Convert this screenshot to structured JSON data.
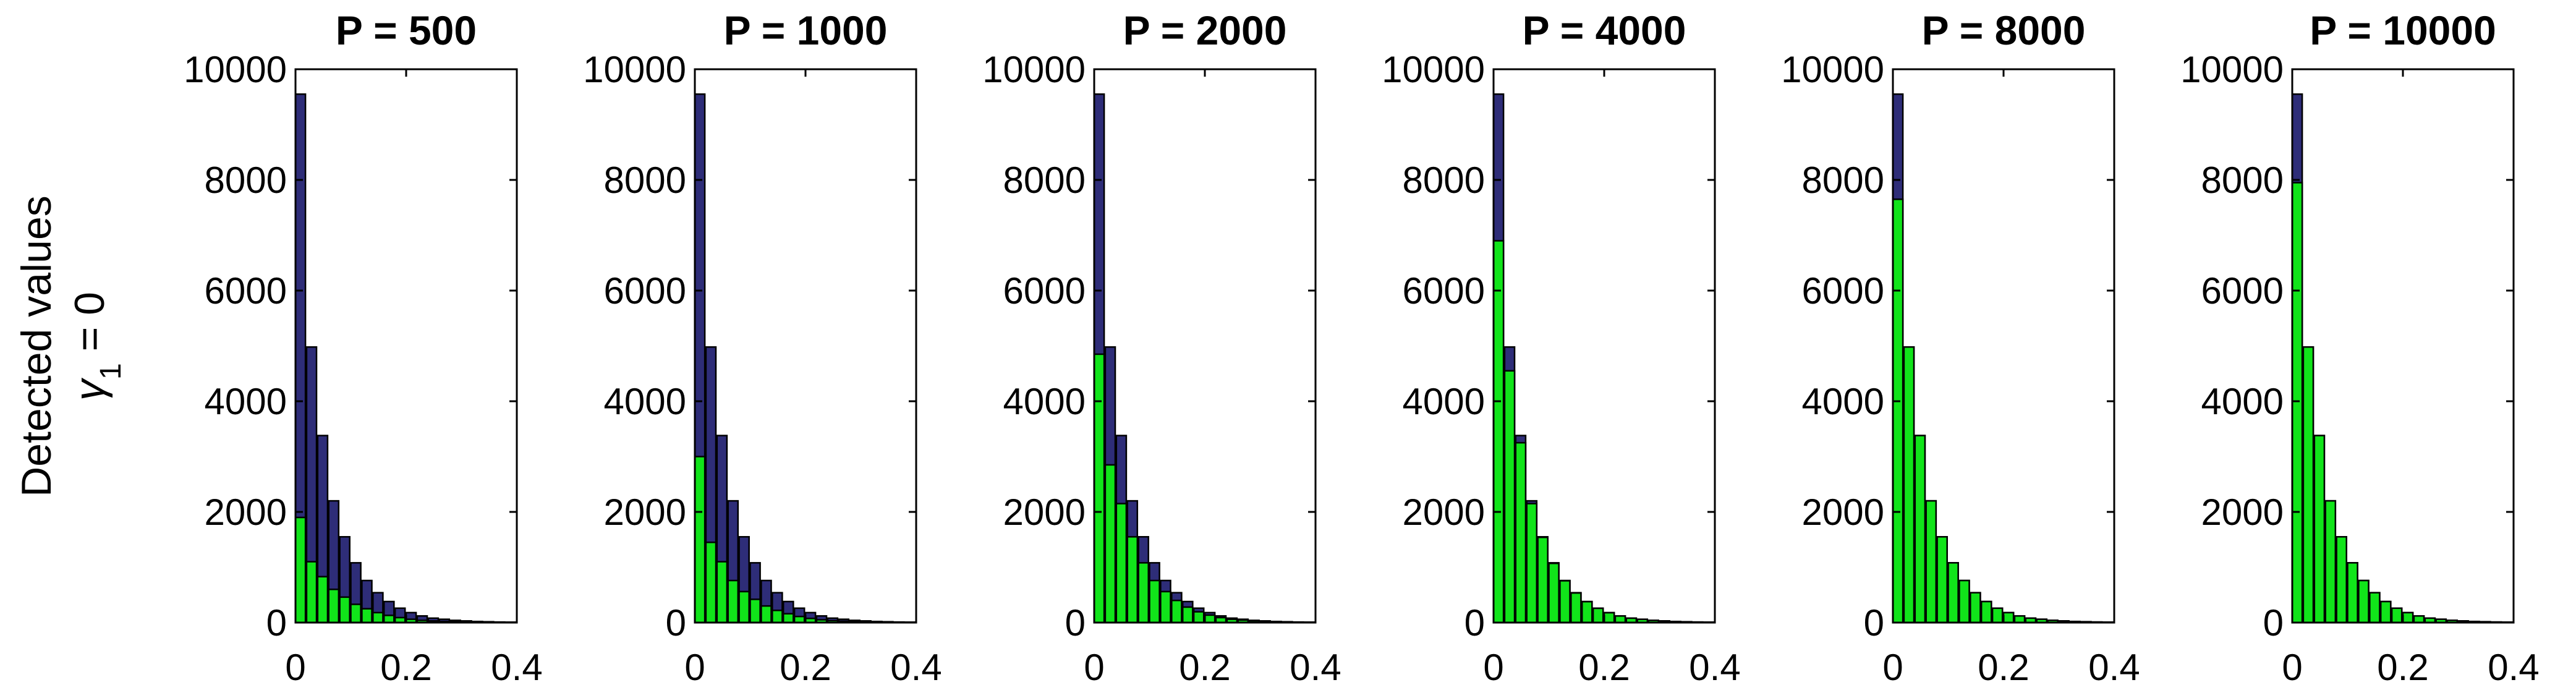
{
  "figure": {
    "ylabel_line1": "Detected values",
    "ylabel_line2_symbol": "γ",
    "ylabel_line2_sub": "1",
    "ylabel_line2_rest": " = 0"
  },
  "colors": {
    "total": "#2e2d78",
    "detected": "#11e41a",
    "edge": "#000000"
  },
  "chart_data": [
    {
      "type": "bar",
      "title": "P = 500",
      "xlim": [
        0,
        0.4
      ],
      "ylim": [
        0,
        10000
      ],
      "xticks": [
        "0",
        "0.2",
        "0.4"
      ],
      "yticks": [
        "0",
        "2000",
        "4000",
        "6000",
        "8000",
        "10000"
      ],
      "x": [
        0.0,
        0.02,
        0.04,
        0.06,
        0.08,
        0.1,
        0.12,
        0.14,
        0.16,
        0.18,
        0.2,
        0.22,
        0.24,
        0.26,
        0.28,
        0.3,
        0.32,
        0.34,
        0.36,
        0.38
      ],
      "series": [
        {
          "values": [
            9550,
            4980,
            3380,
            2200,
            1550,
            1080,
            760,
            540,
            380,
            260,
            180,
            120,
            80,
            60,
            40,
            30,
            20,
            15,
            10,
            8
          ]
        },
        {
          "values": [
            1900,
            1100,
            830,
            600,
            460,
            330,
            250,
            180,
            130,
            90,
            60,
            40,
            30,
            20,
            15,
            10,
            8,
            6,
            4,
            3
          ]
        }
      ]
    },
    {
      "type": "bar",
      "title": "P = 1000",
      "xlim": [
        0,
        0.4
      ],
      "ylim": [
        0,
        10000
      ],
      "xticks": [
        "0",
        "0.2",
        "0.4"
      ],
      "yticks": [
        "0",
        "2000",
        "4000",
        "6000",
        "8000",
        "10000"
      ],
      "x": [
        0.0,
        0.02,
        0.04,
        0.06,
        0.08,
        0.1,
        0.12,
        0.14,
        0.16,
        0.18,
        0.2,
        0.22,
        0.24,
        0.26,
        0.28,
        0.3,
        0.32,
        0.34,
        0.36,
        0.38
      ],
      "series": [
        {
          "values": [
            9550,
            4980,
            3380,
            2200,
            1550,
            1080,
            760,
            540,
            380,
            260,
            180,
            120,
            80,
            60,
            40,
            30,
            20,
            15,
            10,
            8
          ]
        },
        {
          "values": [
            3000,
            1450,
            1100,
            760,
            560,
            420,
            300,
            220,
            160,
            110,
            75,
            50,
            35,
            25,
            18,
            12,
            9,
            7,
            5,
            4
          ]
        }
      ]
    },
    {
      "type": "bar",
      "title": "P = 2000",
      "xlim": [
        0,
        0.4
      ],
      "ylim": [
        0,
        10000
      ],
      "xticks": [
        "0",
        "0.2",
        "0.4"
      ],
      "yticks": [
        "0",
        "2000",
        "4000",
        "6000",
        "8000",
        "10000"
      ],
      "x": [
        0.0,
        0.02,
        0.04,
        0.06,
        0.08,
        0.1,
        0.12,
        0.14,
        0.16,
        0.18,
        0.2,
        0.22,
        0.24,
        0.26,
        0.28,
        0.3,
        0.32,
        0.34,
        0.36,
        0.38
      ],
      "series": [
        {
          "values": [
            9550,
            4980,
            3380,
            2200,
            1550,
            1080,
            760,
            540,
            380,
            260,
            180,
            120,
            80,
            60,
            40,
            30,
            20,
            15,
            10,
            8
          ]
        },
        {
          "values": [
            4850,
            2850,
            2150,
            1550,
            1080,
            760,
            560,
            400,
            280,
            195,
            135,
            90,
            60,
            45,
            32,
            22,
            16,
            12,
            8,
            6
          ]
        }
      ]
    },
    {
      "type": "bar",
      "title": "P = 4000",
      "xlim": [
        0,
        0.4
      ],
      "ylim": [
        0,
        10000
      ],
      "xticks": [
        "0",
        "0.2",
        "0.4"
      ],
      "yticks": [
        "0",
        "2000",
        "4000",
        "6000",
        "8000",
        "10000"
      ],
      "x": [
        0.0,
        0.02,
        0.04,
        0.06,
        0.08,
        0.1,
        0.12,
        0.14,
        0.16,
        0.18,
        0.2,
        0.22,
        0.24,
        0.26,
        0.28,
        0.3,
        0.32,
        0.34,
        0.36,
        0.38
      ],
      "series": [
        {
          "values": [
            9550,
            4980,
            3380,
            2200,
            1550,
            1080,
            760,
            540,
            380,
            260,
            180,
            120,
            80,
            60,
            40,
            30,
            20,
            15,
            10,
            8
          ]
        },
        {
          "values": [
            6900,
            4550,
            3250,
            2150,
            1540,
            1070,
            755,
            535,
            378,
            258,
            178,
            119,
            79,
            59,
            39,
            29,
            19,
            14,
            9,
            7
          ]
        }
      ]
    },
    {
      "type": "bar",
      "title": "P = 8000",
      "xlim": [
        0,
        0.4
      ],
      "ylim": [
        0,
        10000
      ],
      "xticks": [
        "0",
        "0.2",
        "0.4"
      ],
      "yticks": [
        "0",
        "2000",
        "4000",
        "6000",
        "8000",
        "10000"
      ],
      "x": [
        0.0,
        0.02,
        0.04,
        0.06,
        0.08,
        0.1,
        0.12,
        0.14,
        0.16,
        0.18,
        0.2,
        0.22,
        0.24,
        0.26,
        0.28,
        0.3,
        0.32,
        0.34,
        0.36,
        0.38
      ],
      "series": [
        {
          "values": [
            9550,
            4980,
            3380,
            2200,
            1550,
            1080,
            760,
            540,
            380,
            260,
            180,
            120,
            80,
            60,
            40,
            30,
            20,
            15,
            10,
            8
          ]
        },
        {
          "values": [
            7650,
            4980,
            3380,
            2200,
            1550,
            1080,
            760,
            540,
            380,
            260,
            180,
            120,
            80,
            60,
            40,
            30,
            20,
            15,
            10,
            8
          ]
        }
      ]
    },
    {
      "type": "bar",
      "title": "P = 10000",
      "xlim": [
        0,
        0.4
      ],
      "ylim": [
        0,
        10000
      ],
      "xticks": [
        "0",
        "0.2",
        "0.4"
      ],
      "yticks": [
        "0",
        "2000",
        "4000",
        "6000",
        "8000",
        "10000"
      ],
      "x": [
        0.0,
        0.02,
        0.04,
        0.06,
        0.08,
        0.1,
        0.12,
        0.14,
        0.16,
        0.18,
        0.2,
        0.22,
        0.24,
        0.26,
        0.28,
        0.3,
        0.32,
        0.34,
        0.36,
        0.38
      ],
      "series": [
        {
          "values": [
            9550,
            4980,
            3380,
            2200,
            1550,
            1080,
            760,
            540,
            380,
            260,
            180,
            120,
            80,
            60,
            40,
            30,
            20,
            15,
            10,
            8
          ]
        },
        {
          "values": [
            7950,
            4980,
            3380,
            2200,
            1550,
            1080,
            760,
            540,
            380,
            260,
            180,
            120,
            80,
            60,
            40,
            30,
            20,
            15,
            10,
            8
          ]
        }
      ]
    }
  ]
}
